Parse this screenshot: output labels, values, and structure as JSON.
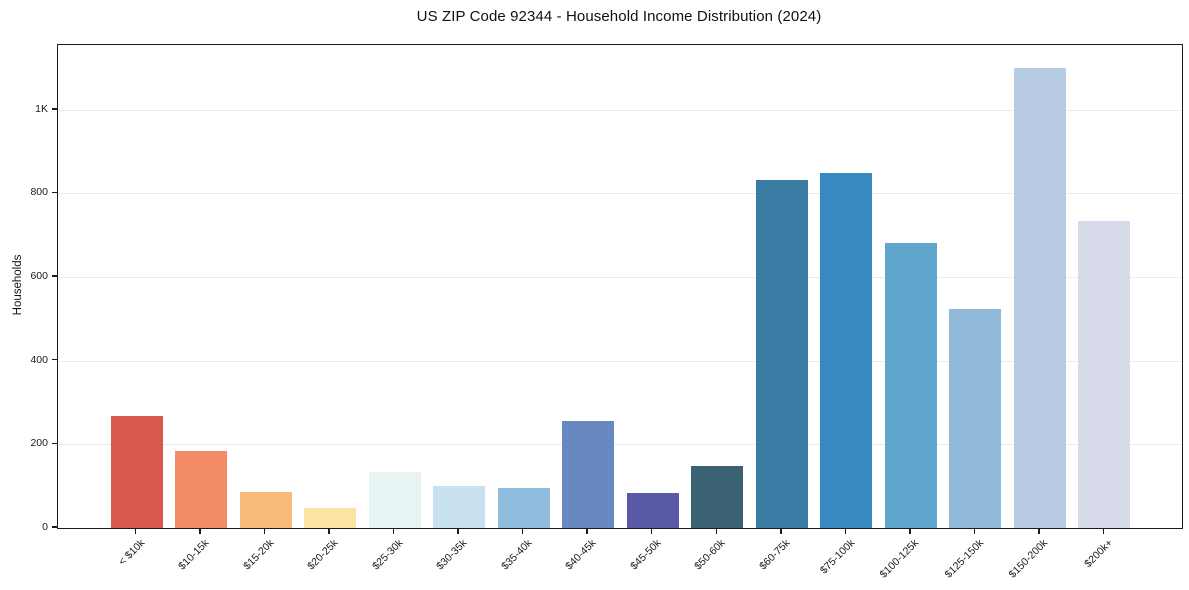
{
  "chart_data": {
    "type": "bar",
    "title": "US ZIP Code 92344 - Household Income Distribution (2024)",
    "xlabel": "",
    "ylabel": "Households",
    "categories": [
      "< $10k",
      "$10-15k",
      "$15-20k",
      "$20-25k",
      "$25-30k",
      "$30-35k",
      "$35-40k",
      "$40-45k",
      "$45-50k",
      "$50-60k",
      "$60-75k",
      "$75-100k",
      "$100-125k",
      "$125-150k",
      "$150-200k",
      "$200k+"
    ],
    "values": [
      268,
      183,
      86,
      48,
      135,
      100,
      96,
      257,
      83,
      148,
      833,
      848,
      682,
      524,
      1100,
      733
    ],
    "bar_colors": [
      "#d6584f",
      "#f58c68",
      "#f9ba7b",
      "#fce3a3",
      "#e8f4f4",
      "#c8e2f0",
      "#8fbcdc",
      "#6788c1",
      "#5a59a7",
      "#3b6273",
      "#3a7ba4",
      "#3789bf",
      "#60a5cb",
      "#90b8d8",
      "#b7cbe3",
      "#d7dbe9"
    ],
    "ylim": [
      0,
      1155
    ],
    "yticks": [
      {
        "value": 0,
        "label": "0"
      },
      {
        "value": 200,
        "label": "200"
      },
      {
        "value": 400,
        "label": "400"
      },
      {
        "value": 600,
        "label": "600"
      },
      {
        "value": 800,
        "label": "800"
      },
      {
        "value": 1000,
        "label": "1K"
      }
    ],
    "grid": "horizontal",
    "gridline_color": "#ebebeb",
    "legend_position": "none",
    "x_tick_rotation_deg": 45
  }
}
